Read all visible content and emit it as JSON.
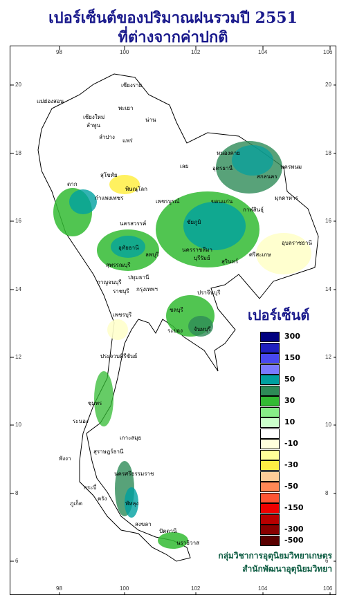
{
  "title_line1": "เปอร์เซ็นต์ของปริมาณฝนรวมปี 2551",
  "title_line2": "ที่ต่างจากค่าปกติ",
  "legend": {
    "title": "เปอร์เซ็นต์",
    "entries": [
      {
        "label": "300",
        "color": "#000080"
      },
      {
        "label": "",
        "color": "#2020c0"
      },
      {
        "label": "150",
        "color": "#4848f0"
      },
      {
        "label": "",
        "color": "#7a7aff"
      },
      {
        "label": "50",
        "color": "#00a0a0"
      },
      {
        "label": "",
        "color": "#2e8b57"
      },
      {
        "label": "30",
        "color": "#33bb33"
      },
      {
        "label": "",
        "color": "#88ee88"
      },
      {
        "label": "10",
        "color": "#ccffcc"
      },
      {
        "label": "",
        "color": "#ffffff"
      },
      {
        "label": "-10",
        "color": "#ffffdd"
      },
      {
        "label": "",
        "color": "#ffff99"
      },
      {
        "label": "-30",
        "color": "#ffee44"
      },
      {
        "label": "",
        "color": "#ffcc99"
      },
      {
        "label": "-50",
        "color": "#ff8855"
      },
      {
        "label": "",
        "color": "#ff5533"
      },
      {
        "label": "-150",
        "color": "#ee0000"
      },
      {
        "label": "",
        "color": "#b80000"
      },
      {
        "label": "-300",
        "color": "#880000"
      },
      {
        "label": "-500",
        "color": "#5a0000"
      }
    ]
  },
  "axes": {
    "lon_ticks": [
      "98",
      "100",
      "102",
      "104",
      "106"
    ],
    "lat_ticks": [
      "20",
      "18",
      "16",
      "14",
      "12",
      "10",
      "8",
      "6"
    ]
  },
  "credit_line1": "กลุ่มวิชาการอุตุนิยมวิทยาเกษตร",
  "credit_line2": "สำนักพัฒนาอุตุนิยมวิทยา",
  "places": [
    "เชียงราย",
    "แม่ฮ่องสอน",
    "เชียงใหม่",
    "ลำพูน",
    "พะเยา",
    "น่าน",
    "ลำปาง",
    "แพร่",
    "ตาก",
    "สุโขทัย",
    "พิษณุโลก",
    "เลย",
    "หนองคาย",
    "อุดรธานี",
    "สกลนคร",
    "นครพนม",
    "กำแพงเพชร",
    "เพชรบูรณ์",
    "ขอนแก่น",
    "กาฬสินธุ์",
    "มุกดาหาร",
    "นครสวรรค์",
    "ชัยภูมิ",
    "อุบลราชธานี",
    "ลพบุรี",
    "นครราชสีมา",
    "บุรีรัมย์",
    "สุรินทร์",
    "ศรีสะเกษ",
    "อุทัยธานี",
    "สุพรรณบุรี",
    "กาญจนบุรี",
    "ปทุมธานี",
    "ราชบุรี",
    "กรุงเทพฯ",
    "ปราจีนบุรี",
    "ชลบุรี",
    "ระยอง",
    "จันทบุรี",
    "เพชรบุรี",
    "ประจวบคีรีขันธ์",
    "ชุมพร",
    "ระนอง",
    "สุราษฎร์ธานี",
    "เกาะสมุย",
    "พังงา",
    "กระบี่",
    "นครศรีธรรมราช",
    "ภูเก็ต",
    "ตรัง",
    "พัทลุง",
    "สงขลา",
    "ปัตตานี",
    "นราธิวาส"
  ]
}
